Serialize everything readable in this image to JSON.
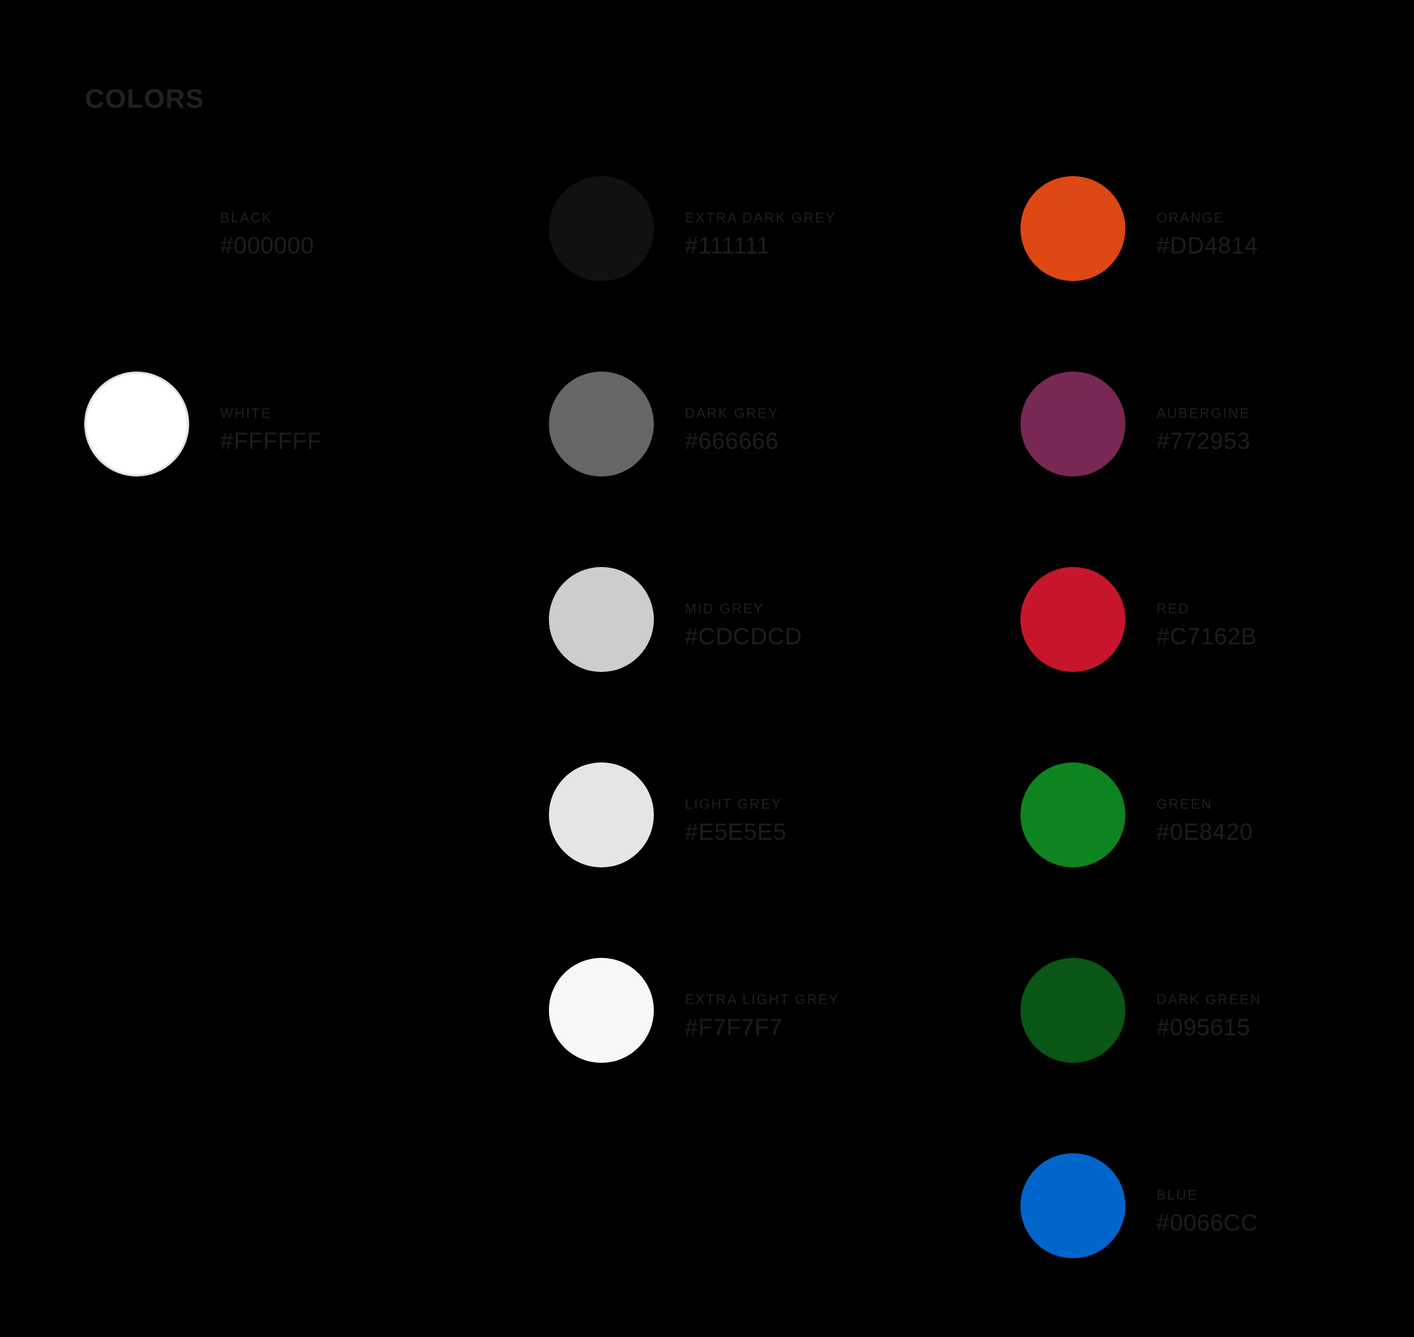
{
  "page": {
    "title": "COLORS",
    "background": "#000000",
    "title_color": "#212121",
    "label_color": "#1f1f1f"
  },
  "palette": {
    "columns": [
      {
        "swatches": [
          {
            "name": "BLACK",
            "hex": "#000000"
          },
          {
            "name": "WHITE",
            "hex": "#FFFFFF",
            "ring": "#e2e2e2"
          }
        ]
      },
      {
        "swatches": [
          {
            "name": "EXTRA DARK GREY",
            "hex": "#111111"
          },
          {
            "name": "DARK GREY",
            "hex": "#666666"
          },
          {
            "name": "MID GREY",
            "hex": "#CDCDCD"
          },
          {
            "name": "LIGHT GREY",
            "hex": "#E5E5E5"
          },
          {
            "name": "EXTRA LIGHT GREY",
            "hex": "#F7F7F7"
          }
        ]
      },
      {
        "swatches": [
          {
            "name": "ORANGE",
            "hex": "#DD4814"
          },
          {
            "name": "AUBERGINE",
            "hex": "#772953"
          },
          {
            "name": "RED",
            "hex": "#C7162B"
          },
          {
            "name": "GREEN",
            "hex": "#0E8420"
          },
          {
            "name": "DARK GREEN",
            "hex": "#095615"
          },
          {
            "name": "BLUE",
            "hex": "#0066CC"
          }
        ]
      }
    ]
  }
}
